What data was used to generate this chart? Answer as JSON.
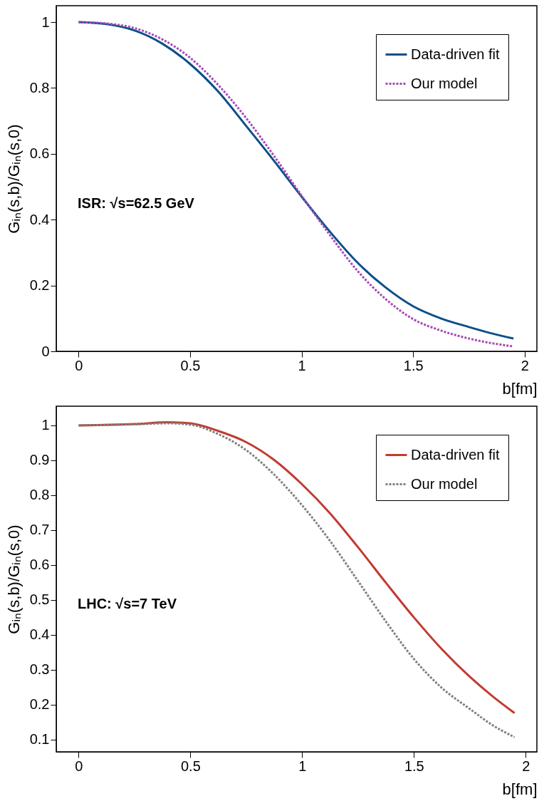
{
  "chart_data": [
    {
      "type": "line",
      "xlabel": "b[fm]",
      "ylabel": "Gᵢₙ(s,b)/Gᵢₙ(s,0)",
      "x": [
        0,
        0.125,
        0.25,
        0.375,
        0.5,
        0.625,
        0.75,
        0.875,
        1,
        1.125,
        1.25,
        1.375,
        1.5,
        1.625,
        1.75,
        1.85,
        1.95
      ],
      "series": [
        {
          "name": "Data-driven fit",
          "color": "#0b4f8a",
          "line_style": "solid",
          "values": [
            1,
            0.994,
            0.975,
            0.935,
            0.873,
            0.79,
            0.686,
            0.58,
            0.47,
            0.365,
            0.27,
            0.195,
            0.137,
            0.1,
            0.074,
            0.055,
            0.039
          ]
        },
        {
          "name": "Our model",
          "color": "#a54bb5",
          "line_style": "dotted",
          "values": [
            1,
            0.996,
            0.982,
            0.948,
            0.892,
            0.81,
            0.71,
            0.595,
            0.473,
            0.355,
            0.245,
            0.16,
            0.098,
            0.063,
            0.039,
            0.025,
            0.015
          ]
        }
      ],
      "xlim": [
        -0.1,
        2.055
      ],
      "ylim": [
        0,
        1.05
      ],
      "xticks": [
        0,
        0.5,
        1,
        1.5,
        2
      ],
      "yticks": [
        0,
        0.2,
        0.4,
        0.6,
        0.8,
        1
      ],
      "legend": "top right",
      "annotations": [
        "ISR:  √s=62.5 GeV"
      ]
    },
    {
      "type": "line",
      "xlabel": "b[fm]",
      "ylabel": "Gᵢₙ(s,b)/Gᵢₙ(s,0)",
      "x": [
        0,
        0.25,
        0.4,
        0.5,
        0.625,
        0.75,
        0.875,
        1,
        1.125,
        1.25,
        1.375,
        1.5,
        1.625,
        1.75,
        1.85,
        1.95
      ],
      "series": [
        {
          "name": "Data-driven fit",
          "color": "#c23b30",
          "line_style": "solid",
          "values": [
            1,
            1.004,
            1.009,
            1.006,
            0.984,
            0.952,
            0.901,
            0.831,
            0.748,
            0.651,
            0.549,
            0.45,
            0.359,
            0.28,
            0.225,
            0.176
          ]
        },
        {
          "name": "Our model",
          "color": "#808080",
          "line_style": "dotted",
          "values": [
            1,
            1.003,
            1.006,
            1.002,
            0.975,
            0.929,
            0.859,
            0.771,
            0.669,
            0.554,
            0.438,
            0.331,
            0.248,
            0.188,
            0.142,
            0.107
          ]
        }
      ],
      "xlim": [
        -0.1,
        2.05
      ],
      "ylim": [
        0.065,
        1.055
      ],
      "xticks": [
        0,
        0.5,
        1,
        1.5,
        2
      ],
      "yticks": [
        0.1,
        0.2,
        0.3,
        0.4,
        0.5,
        0.6,
        0.7,
        0.8,
        0.9,
        1
      ],
      "legend": "top right",
      "annotations": [
        "LHC:  √s=7 TeV"
      ]
    }
  ]
}
